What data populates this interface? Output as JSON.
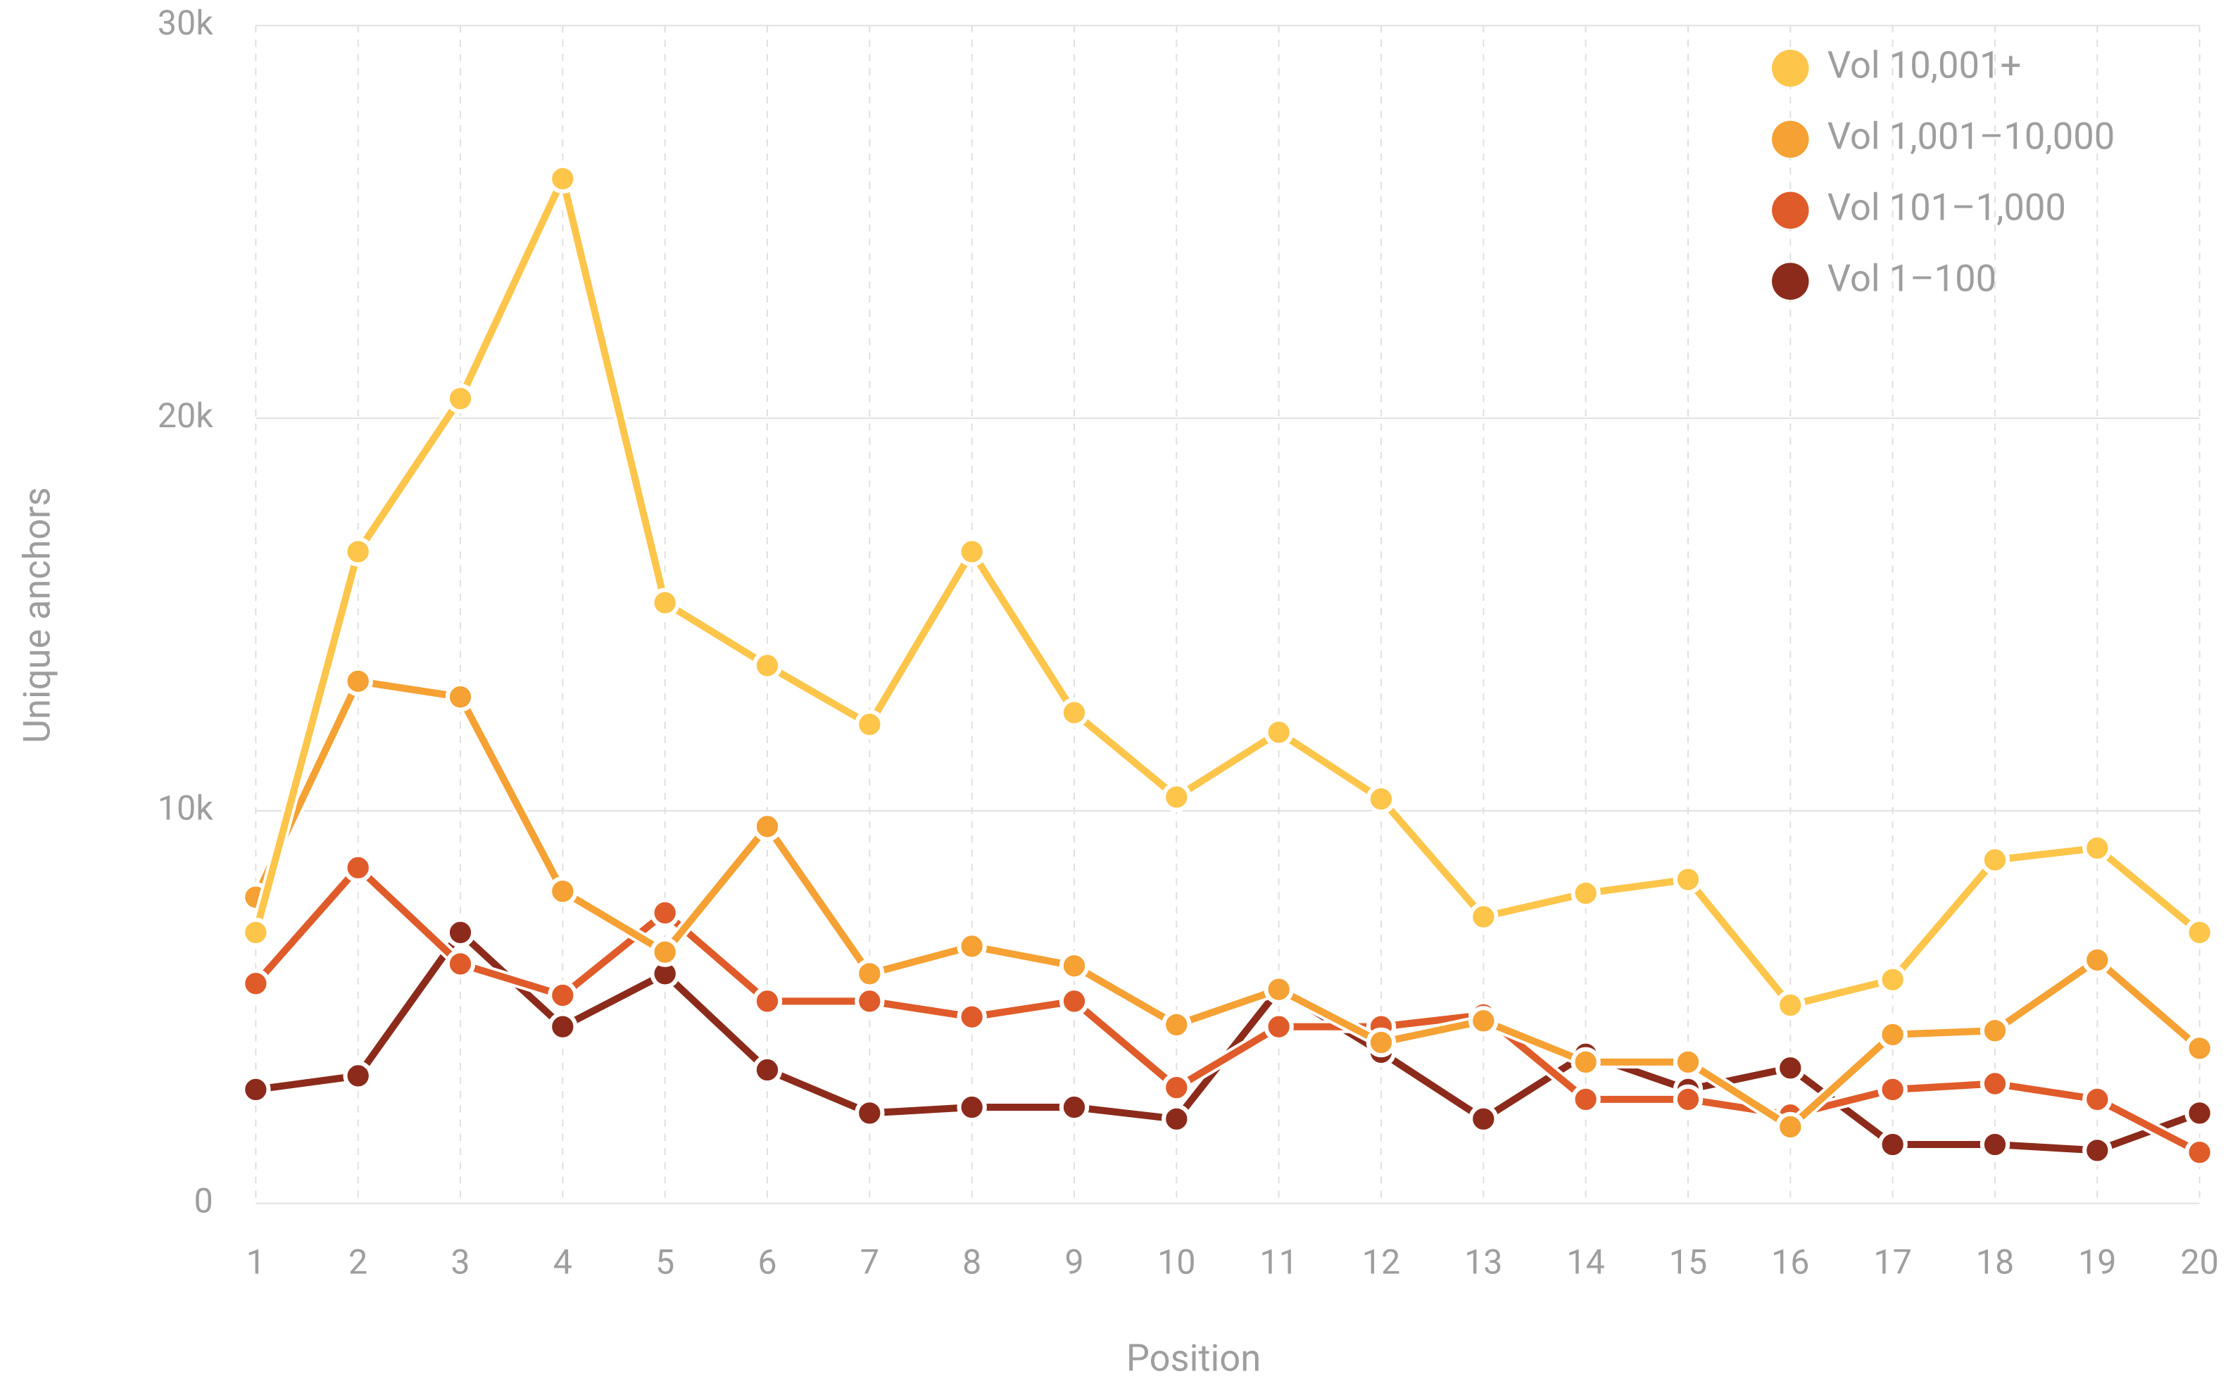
{
  "chart_data": {
    "type": "line",
    "x_label": "Position",
    "y_label": "Unique anchors",
    "categories": [
      "1",
      "2",
      "3",
      "4",
      "5",
      "6",
      "7",
      "8",
      "9",
      "10",
      "11",
      "12",
      "13",
      "14",
      "15",
      "16",
      "17",
      "18",
      "19",
      "20"
    ],
    "series": [
      {
        "name": "Vol 10,001+",
        "color": "#fdc54a",
        "values": [
          6900,
          16600,
          20500,
          26100,
          15300,
          13700,
          12200,
          16600,
          12500,
          10350,
          12000,
          10300,
          7300,
          7900,
          8250,
          5050,
          5700,
          8750,
          9050,
          6900
        ]
      },
      {
        "name": "Vol 1,001–10,000",
        "color": "#f5a133",
        "values": [
          7800,
          13300,
          12900,
          7950,
          6400,
          9600,
          5850,
          6550,
          6050,
          4550,
          5450,
          4100,
          4650,
          3600,
          3600,
          1950,
          4300,
          4400,
          6200,
          3950
        ]
      },
      {
        "name": "Vol 101–1,000",
        "color": "#e05b2a",
        "values": [
          5600,
          8550,
          6100,
          5300,
          7400,
          5150,
          5150,
          4750,
          5150,
          2950,
          4500,
          4500,
          4800,
          2650,
          2650,
          2250,
          2900,
          3050,
          2650,
          1300
        ]
      },
      {
        "name": "Vol 1–100",
        "color": "#8c2b1b",
        "values": [
          2900,
          3250,
          6900,
          4500,
          5850,
          3400,
          2300,
          2450,
          2450,
          2150,
          5450,
          3850,
          2150,
          3800,
          2900,
          3450,
          1500,
          1500,
          1350,
          2300
        ]
      }
    ],
    "ylim": [
      0,
      30000
    ],
    "yticks": [
      0,
      {
        "value": 10000,
        "label": "10k"
      },
      {
        "value": 20000,
        "label": "20k"
      },
      {
        "value": 30000,
        "label": "30k"
      }
    ],
    "grid": true,
    "legend": "top-right"
  }
}
